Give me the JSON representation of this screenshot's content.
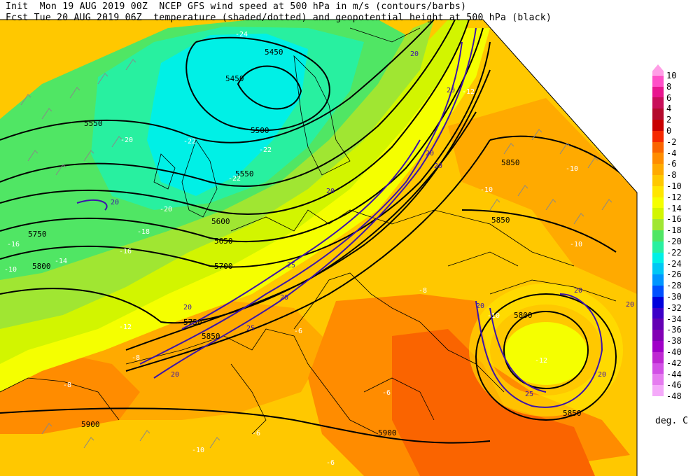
{
  "header": {
    "line1": "Init  Mon 19 AUG 2019 00Z  NCEP GFS wind speed at 500 hPa in m/s (contours/barbs)",
    "line2": "Fcst Tue 20 AUG 2019 06Z  temperature (shaded/dotted) and geopotential height at 500 hPa (black)"
  },
  "legend": {
    "units": "deg. C",
    "entries": [
      {
        "label": "10",
        "color": "#ff9ee6"
      },
      {
        "label": "8",
        "color": "#ff50c8"
      },
      {
        "label": "6",
        "color": "#e8168f"
      },
      {
        "label": "4",
        "color": "#c80f5a"
      },
      {
        "label": "2",
        "color": "#b40a2d"
      },
      {
        "label": "0",
        "color": "#c80000"
      },
      {
        "label": "-2",
        "color": "#f52800"
      },
      {
        "label": "-4",
        "color": "#fa6400"
      },
      {
        "label": "-6",
        "color": "#ff8c00"
      },
      {
        "label": "-8",
        "color": "#ffaa00"
      },
      {
        "label": "-10",
        "color": "#ffc800"
      },
      {
        "label": "-12",
        "color": "#ffe600"
      },
      {
        "label": "-14",
        "color": "#f5ff00"
      },
      {
        "label": "-16",
        "color": "#d2f500"
      },
      {
        "label": "-18",
        "color": "#a0e632"
      },
      {
        "label": "-20",
        "color": "#50e664"
      },
      {
        "label": "-22",
        "color": "#28f0a0"
      },
      {
        "label": "-24",
        "color": "#00f0e6"
      },
      {
        "label": "-26",
        "color": "#00c8f5"
      },
      {
        "label": "-28",
        "color": "#0096ff"
      },
      {
        "label": "-30",
        "color": "#0050ff"
      },
      {
        "label": "-32",
        "color": "#0000dc"
      },
      {
        "label": "-34",
        "color": "#3c00c8"
      },
      {
        "label": "-36",
        "color": "#6400b4"
      },
      {
        "label": "-38",
        "color": "#8200b4"
      },
      {
        "label": "-40",
        "color": "#a000c8"
      },
      {
        "label": "-42",
        "color": "#be28d2"
      },
      {
        "label": "-44",
        "color": "#d250e6"
      },
      {
        "label": "-46",
        "color": "#e67cf0"
      },
      {
        "label": "-48",
        "color": "#f5aafa"
      }
    ]
  },
  "map": {
    "colors": {
      "cold_core": "#00f0e6",
      "cold": "#28f0a0",
      "cool": "#50e664",
      "mild": "#a0e632",
      "yellow": "#f5ff00",
      "yellow2": "#ffe600",
      "amber": "#ffc800",
      "orange": "#ffaa00",
      "deep_orange": "#ff8c00",
      "red_orange": "#fa6400",
      "jet": "#3c14aa",
      "height_contour": "#000000"
    },
    "height_labels": [
      "5450",
      "5450",
      "5500",
      "5550",
      "5550",
      "5600",
      "5650",
      "5700",
      "5750",
      "5750",
      "5800",
      "5850",
      "5850",
      "5850",
      "5800",
      "5850",
      "5900",
      "5900"
    ],
    "temperature_labels": [
      "-24",
      "-22",
      "-22",
      "-22",
      "-20",
      "-20",
      "-18",
      "-16",
      "-16",
      "-14",
      "-12",
      "-12",
      "-10",
      "-10",
      "-10",
      "-10",
      "-10",
      "-8",
      "-8",
      "-8",
      "-6",
      "-6",
      "-6",
      "-6",
      "-12",
      "-10"
    ],
    "wind_labels": [
      "20",
      "20",
      "20",
      "20",
      "20",
      "20",
      "25",
      "20",
      "25",
      "20",
      "20",
      "20",
      "20",
      "25",
      "20",
      "20"
    ]
  }
}
